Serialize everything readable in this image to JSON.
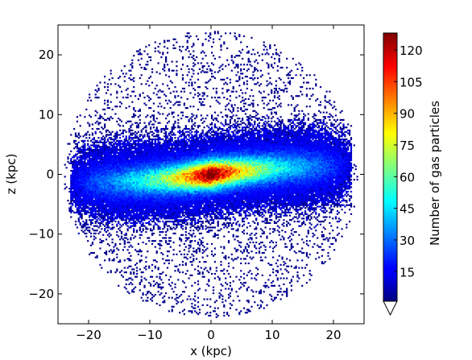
{
  "chart_data": {
    "type": "heatmap",
    "title": "",
    "xlabel": "x (kpc)",
    "ylabel": "z (kpc)",
    "xlim": [
      -25,
      25
    ],
    "ylim": [
      -25,
      25
    ],
    "x_ticks": [
      -20,
      -10,
      0,
      10,
      20
    ],
    "y_ticks": [
      -20,
      -10,
      0,
      10,
      20
    ],
    "x_tick_labels": [
      "−20",
      "−10",
      "0",
      "10",
      "20"
    ],
    "y_tick_labels": [
      "−20",
      "−10",
      "0",
      "10",
      "20"
    ],
    "grid": false,
    "colorbar": {
      "label": "Number of gas particles",
      "range": [
        1,
        128
      ],
      "ticks": [
        15,
        30,
        45,
        60,
        75,
        90,
        105,
        120
      ],
      "tick_labels": [
        "15",
        "30",
        "45",
        "60",
        "75",
        "90",
        "105",
        "120"
      ],
      "extend": "min",
      "colormap": "jet"
    },
    "distribution": {
      "sphere_radius_kpc": 24,
      "disk_half_length_kpc": 23,
      "disk_thickness_kpc": 1.5,
      "peak_count": 128,
      "disk_warp_kpc_at_edge": 1.3
    }
  }
}
